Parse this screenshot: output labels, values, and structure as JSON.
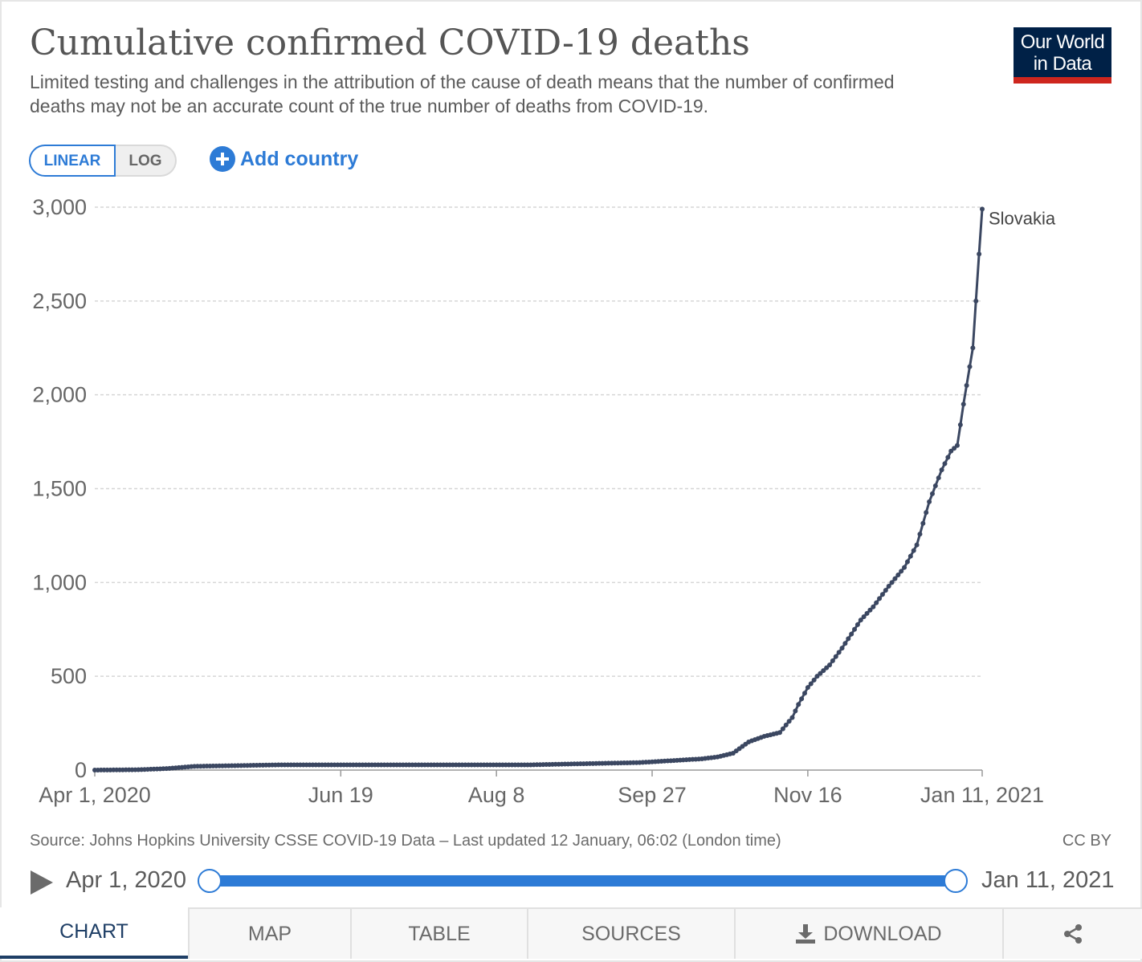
{
  "header": {
    "title": "Cumulative confirmed COVID-19 deaths",
    "subtitle": "Limited testing and challenges in the attribution of the cause of death means that the number of confirmed deaths may not be an accurate count of the true number of deaths from COVID-19.",
    "logo_line1": "Our World",
    "logo_line2": "in Data"
  },
  "controls": {
    "linear_label": "LINEAR",
    "log_label": "LOG",
    "add_country_label": "Add country"
  },
  "colors": {
    "accent": "#2d7bd6",
    "series": "#3b4761",
    "brand_navy": "#002147",
    "brand_red": "#ce261e"
  },
  "chart_data": {
    "type": "line",
    "title": "Cumulative confirmed COVID-19 deaths",
    "xlabel": "",
    "ylabel": "",
    "x_range_days": [
      0,
      285
    ],
    "ylim": [
      0,
      3000
    ],
    "yticks": [
      0,
      500,
      1000,
      1500,
      2000,
      2500,
      3000
    ],
    "ytick_labels": [
      "0",
      "500",
      "1,000",
      "1,500",
      "2,000",
      "2,500",
      "3,000"
    ],
    "xticks_days": [
      0,
      79,
      129,
      179,
      229,
      285
    ],
    "xtick_labels": [
      "Apr 1, 2020",
      "Jun 19",
      "Aug 8",
      "Sep 27",
      "Nov 16",
      "Jan 11, 2021"
    ],
    "grid": true,
    "series": [
      {
        "name": "Slovakia",
        "points": [
          [
            0,
            0
          ],
          [
            14,
            2
          ],
          [
            23,
            8
          ],
          [
            32,
            20
          ],
          [
            60,
            28
          ],
          [
            100,
            28
          ],
          [
            140,
            28
          ],
          [
            160,
            35
          ],
          [
            175,
            40
          ],
          [
            185,
            50
          ],
          [
            195,
            60
          ],
          [
            200,
            70
          ],
          [
            205,
            90
          ],
          [
            210,
            150
          ],
          [
            215,
            180
          ],
          [
            220,
            200
          ],
          [
            224,
            280
          ],
          [
            226,
            350
          ],
          [
            229,
            440
          ],
          [
            232,
            500
          ],
          [
            236,
            560
          ],
          [
            240,
            650
          ],
          [
            246,
            800
          ],
          [
            250,
            870
          ],
          [
            255,
            980
          ],
          [
            260,
            1080
          ],
          [
            264,
            1200
          ],
          [
            268,
            1430
          ],
          [
            272,
            1600
          ],
          [
            275,
            1700
          ],
          [
            277,
            1730
          ],
          [
            279,
            1950
          ],
          [
            281,
            2150
          ],
          [
            282,
            2250
          ],
          [
            283,
            2500
          ],
          [
            284,
            2750
          ],
          [
            285,
            2990
          ]
        ]
      }
    ]
  },
  "footer": {
    "source": "Source: Johns Hopkins University CSSE COVID-19 Data – Last updated 12 January, 06:02 (London time)",
    "license": "CC BY"
  },
  "timeline": {
    "start_label": "Apr 1, 2020",
    "end_label": "Jan 11, 2021"
  },
  "tabs": {
    "chart": "CHART",
    "map": "MAP",
    "table": "TABLE",
    "sources": "SOURCES",
    "download": "DOWNLOAD"
  }
}
